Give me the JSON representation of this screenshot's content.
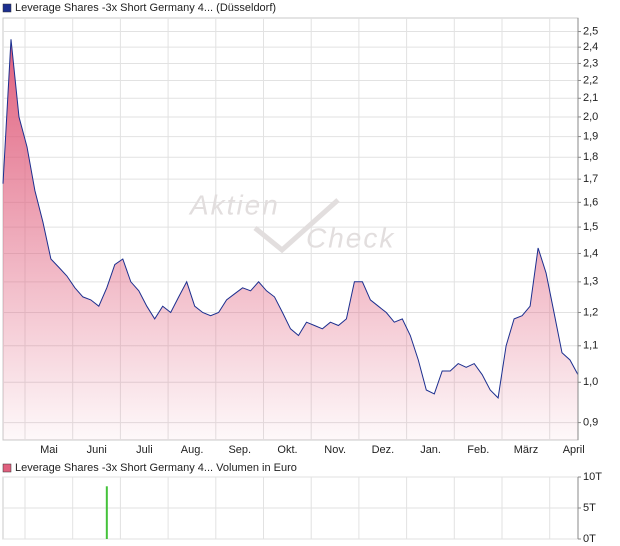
{
  "chart_data": [
    {
      "type": "area",
      "legend": "Leverage Shares -3x Short Germany 4... (Düsseldorf)",
      "watermark": [
        "Aktien",
        "Check"
      ],
      "log_scale": true,
      "grid": true,
      "xtick_labels": [
        "Mai",
        "Juni",
        "Juli",
        "Aug.",
        "Sep.",
        "Okt.",
        "Nov.",
        "Dez.",
        "Jan.",
        "Feb.",
        "März",
        "April"
      ],
      "series": [
        {
          "name": "Leverage Shares -3x Short Germany 4... (Düsseldorf)",
          "color": "#1c2f8f",
          "fill": "#e0607e",
          "values": [
            1.68,
            2.45,
            2.0,
            1.85,
            1.65,
            1.52,
            1.38,
            1.35,
            1.32,
            1.28,
            1.25,
            1.24,
            1.22,
            1.28,
            1.36,
            1.38,
            1.3,
            1.27,
            1.22,
            1.18,
            1.22,
            1.2,
            1.25,
            1.3,
            1.22,
            1.2,
            1.19,
            1.2,
            1.24,
            1.26,
            1.28,
            1.27,
            1.3,
            1.27,
            1.25,
            1.2,
            1.15,
            1.13,
            1.17,
            1.16,
            1.15,
            1.17,
            1.16,
            1.18,
            1.3,
            1.3,
            1.24,
            1.22,
            1.2,
            1.17,
            1.18,
            1.13,
            1.06,
            0.98,
            0.97,
            1.03,
            1.03,
            1.05,
            1.04,
            1.05,
            1.02,
            0.98,
            0.96,
            1.1,
            1.18,
            1.19,
            1.22,
            1.42,
            1.33,
            1.2,
            1.08,
            1.06,
            1.02
          ]
        }
      ],
      "ylim": [
        0.86,
        2.59
      ],
      "yticks": [
        {
          "value": 0.9,
          "label": "0,9"
        },
        {
          "value": 1.0,
          "label": "1,0"
        },
        {
          "value": 1.1,
          "label": "1,1"
        },
        {
          "value": 1.2,
          "label": "1,2"
        },
        {
          "value": 1.3,
          "label": "1,3"
        },
        {
          "value": 1.4,
          "label": "1,4"
        },
        {
          "value": 1.5,
          "label": "1,5"
        },
        {
          "value": 1.6,
          "label": "1,6"
        },
        {
          "value": 1.7,
          "label": "1,7"
        },
        {
          "value": 1.8,
          "label": "1,8"
        },
        {
          "value": 1.9,
          "label": "1,9"
        },
        {
          "value": 2.0,
          "label": "2,0"
        },
        {
          "value": 2.1,
          "label": "2,1"
        },
        {
          "value": 2.2,
          "label": "2,2"
        },
        {
          "value": 2.3,
          "label": "2,3"
        },
        {
          "value": 2.4,
          "label": "2,4"
        },
        {
          "value": 2.5,
          "label": "2,5"
        }
      ]
    },
    {
      "type": "bar",
      "legend": "Leverage Shares -3x Short Germany 4... Volumen in Euro",
      "grid": true,
      "series": [
        {
          "name": "Leverage Shares -3x Short Germany 4... Volumen in Euro",
          "color": "#44c23a",
          "legend_color": "#e0607e",
          "values": [
            0,
            0,
            0,
            0,
            0,
            0,
            0,
            0,
            0,
            0,
            0,
            0,
            0,
            8500,
            0,
            0,
            0,
            0,
            0,
            0,
            0,
            0,
            0,
            0,
            0,
            0,
            0,
            0,
            0,
            0,
            0,
            0,
            0,
            0,
            0,
            0,
            0,
            0,
            0,
            0,
            0,
            0,
            0,
            0,
            0,
            0,
            0,
            0,
            0,
            0,
            0,
            0,
            0,
            0,
            0,
            0,
            0,
            0,
            0,
            0,
            0,
            0,
            0,
            0,
            0,
            0,
            0,
            0,
            0,
            0,
            0,
            0,
            0
          ]
        }
      ],
      "ylim": [
        0,
        10000
      ],
      "yticks": [
        {
          "value": 0,
          "label": "0T"
        },
        {
          "value": 5000,
          "label": "5T"
        },
        {
          "value": 10000,
          "label": "10T"
        }
      ]
    }
  ]
}
